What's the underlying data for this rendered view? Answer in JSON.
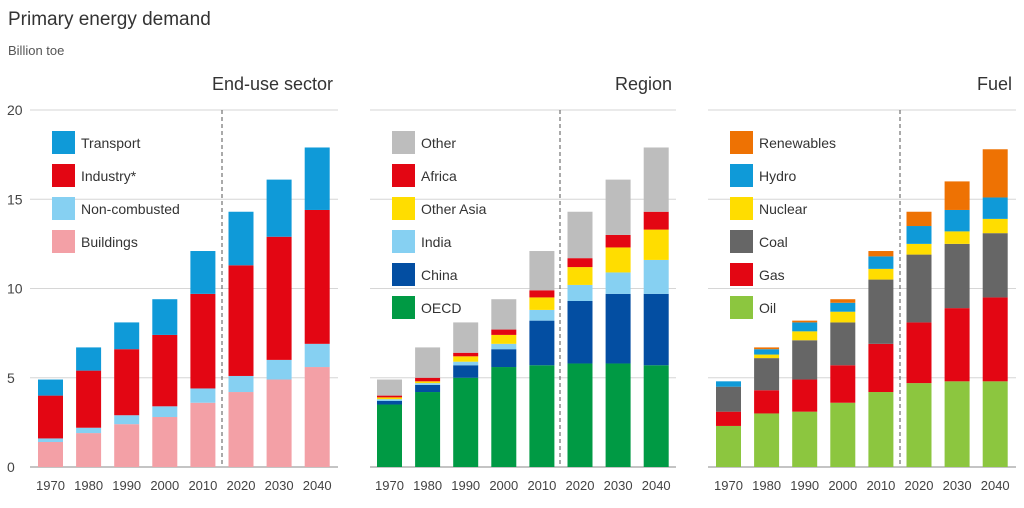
{
  "title": "Primary energy demand",
  "subtitle": "Billion toe",
  "colors": {
    "Transport": "#0f9ad8",
    "Industry*": "#e30613",
    "Non-combusted": "#86d0f2",
    "Buildings": "#f3a0a6",
    "Other": "#bdbdbd",
    "Africa": "#e30613",
    "Other Asia": "#ffdd00",
    "India": "#86d0f2",
    "China": "#034ea2",
    "OECD": "#009a44",
    "Renewables": "#ee7203",
    "Hydro": "#0f9ad8",
    "Nuclear": "#ffdd00",
    "Coal": "#666666",
    "Gas": "#e30613",
    "Oil": "#8cc63f"
  },
  "chart_data": [
    {
      "type": "bar",
      "stacked": true,
      "title": "End-use sector",
      "categories": [
        "1970",
        "1980",
        "1990",
        "2000",
        "2010",
        "2020",
        "2030",
        "2040"
      ],
      "ylim": [
        0,
        20
      ],
      "yticks": [
        "0",
        "5",
        "10",
        "15",
        "20"
      ],
      "projection_divider_after": "2010",
      "legend": [
        "Transport",
        "Industry*",
        "Non-combusted",
        "Buildings"
      ],
      "series": [
        {
          "name": "Buildings",
          "values": [
            1.4,
            1.9,
            2.4,
            2.8,
            3.6,
            4.2,
            4.9,
            5.6
          ]
        },
        {
          "name": "Non-combusted",
          "values": [
            0.2,
            0.3,
            0.5,
            0.6,
            0.8,
            0.9,
            1.1,
            1.3
          ]
        },
        {
          "name": "Industry*",
          "values": [
            2.4,
            3.2,
            3.7,
            4.0,
            5.3,
            6.2,
            6.9,
            7.5
          ]
        },
        {
          "name": "Transport",
          "values": [
            0.9,
            1.3,
            1.5,
            2.0,
            2.4,
            3.0,
            3.2,
            3.5
          ]
        }
      ]
    },
    {
      "type": "bar",
      "stacked": true,
      "title": "Region",
      "categories": [
        "1970",
        "1980",
        "1990",
        "2000",
        "2010",
        "2020",
        "2030",
        "2040"
      ],
      "ylim": [
        0,
        20
      ],
      "projection_divider_after": "2010",
      "legend": [
        "Other",
        "Africa",
        "Other Asia",
        "India",
        "China",
        "OECD"
      ],
      "series": [
        {
          "name": "OECD",
          "values": [
            3.5,
            4.2,
            5.0,
            5.6,
            5.7,
            5.8,
            5.8,
            5.7
          ]
        },
        {
          "name": "China",
          "values": [
            0.2,
            0.4,
            0.7,
            1.0,
            2.5,
            3.5,
            3.9,
            4.0
          ]
        },
        {
          "name": "India",
          "values": [
            0.1,
            0.1,
            0.2,
            0.3,
            0.6,
            0.9,
            1.2,
            1.9
          ]
        },
        {
          "name": "Other Asia",
          "values": [
            0.1,
            0.1,
            0.3,
            0.5,
            0.7,
            1.0,
            1.4,
            1.7
          ]
        },
        {
          "name": "Africa",
          "values": [
            0.1,
            0.2,
            0.2,
            0.3,
            0.4,
            0.5,
            0.7,
            1.0
          ]
        },
        {
          "name": "Other",
          "values": [
            0.9,
            1.7,
            1.7,
            1.7,
            2.2,
            2.6,
            3.1,
            3.6
          ]
        }
      ]
    },
    {
      "type": "bar",
      "stacked": true,
      "title": "Fuel",
      "categories": [
        "1970",
        "1980",
        "1990",
        "2000",
        "2010",
        "2020",
        "2030",
        "2040"
      ],
      "ylim": [
        0,
        20
      ],
      "projection_divider_after": "2010",
      "legend": [
        "Renewables",
        "Hydro",
        "Nuclear",
        "Coal",
        "Gas",
        "Oil"
      ],
      "series": [
        {
          "name": "Oil",
          "values": [
            2.3,
            3.0,
            3.1,
            3.6,
            4.2,
            4.7,
            4.8,
            4.8
          ]
        },
        {
          "name": "Gas",
          "values": [
            0.8,
            1.3,
            1.8,
            2.1,
            2.7,
            3.4,
            4.1,
            4.7
          ]
        },
        {
          "name": "Coal",
          "values": [
            1.4,
            1.8,
            2.2,
            2.4,
            3.6,
            3.8,
            3.6,
            3.6
          ]
        },
        {
          "name": "Nuclear",
          "values": [
            0.0,
            0.2,
            0.5,
            0.6,
            0.6,
            0.6,
            0.7,
            0.8
          ]
        },
        {
          "name": "Hydro",
          "values": [
            0.3,
            0.3,
            0.5,
            0.5,
            0.7,
            1.0,
            1.2,
            1.2
          ]
        },
        {
          "name": "Renewables",
          "values": [
            0.0,
            0.1,
            0.1,
            0.2,
            0.3,
            0.8,
            1.6,
            2.7
          ]
        }
      ]
    }
  ]
}
